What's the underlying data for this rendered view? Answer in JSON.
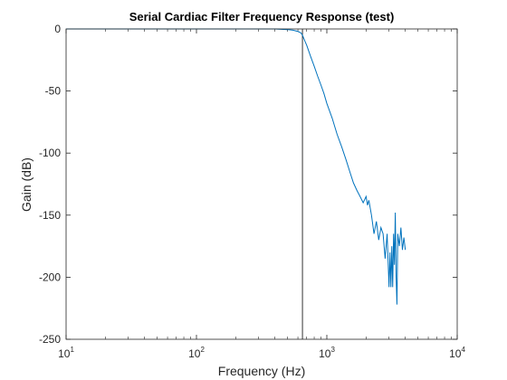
{
  "chart_data": {
    "type": "line",
    "title": "Serial Cardiac Filter Frequency Response (test)",
    "xlabel": "Frequency (Hz)",
    "ylabel": "Gain (dB)",
    "xscale": "log",
    "xlim": [
      10,
      10000
    ],
    "ylim": [
      -250,
      0
    ],
    "grid": false,
    "legend": "none",
    "x_ticks": [
      {
        "base": "10",
        "exp": "1",
        "value": 10
      },
      {
        "base": "10",
        "exp": "2",
        "value": 100
      },
      {
        "base": "10",
        "exp": "3",
        "value": 1000
      },
      {
        "base": "10",
        "exp": "4",
        "value": 10000
      }
    ],
    "y_ticks": [
      {
        "label": "0",
        "value": 0
      },
      {
        "label": "-50",
        "value": -50
      },
      {
        "label": "-100",
        "value": -100
      },
      {
        "label": "-150",
        "value": -150
      },
      {
        "label": "-200",
        "value": -200
      },
      {
        "label": "-250",
        "value": -250
      }
    ],
    "vertical_line": {
      "x": 650,
      "color": "#000000"
    },
    "series": [
      {
        "color": "#0072BD",
        "x": [
          10,
          50,
          100,
          200,
          300,
          400,
          500,
          550,
          600,
          630,
          650,
          680,
          700,
          750,
          800,
          850,
          900,
          950,
          1000,
          1100,
          1200,
          1300,
          1400,
          1500,
          1600,
          1700,
          1800,
          1900,
          2000,
          2050,
          2100,
          2200,
          2300,
          2400,
          2500,
          2600,
          2700,
          2800,
          2900,
          3000,
          3050,
          3100,
          3150,
          3200,
          3250,
          3300,
          3350,
          3400,
          3450,
          3500,
          3600,
          3700,
          3800,
          3900,
          4000
        ],
        "y": [
          0,
          0,
          0,
          0,
          0,
          0,
          -0.5,
          -1,
          -2,
          -3,
          -5,
          -10,
          -13,
          -22,
          -30,
          -38,
          -45,
          -52,
          -60,
          -72,
          -85,
          -95,
          -105,
          -115,
          -124,
          -130,
          -135,
          -140,
          -135,
          -142,
          -138,
          -150,
          -165,
          -155,
          -170,
          -160,
          -165,
          -185,
          -165,
          -208,
          -180,
          -208,
          -175,
          -208,
          -165,
          -190,
          -148,
          -200,
          -222,
          -165,
          -175,
          -160,
          -178,
          -168,
          -178
        ]
      }
    ]
  }
}
